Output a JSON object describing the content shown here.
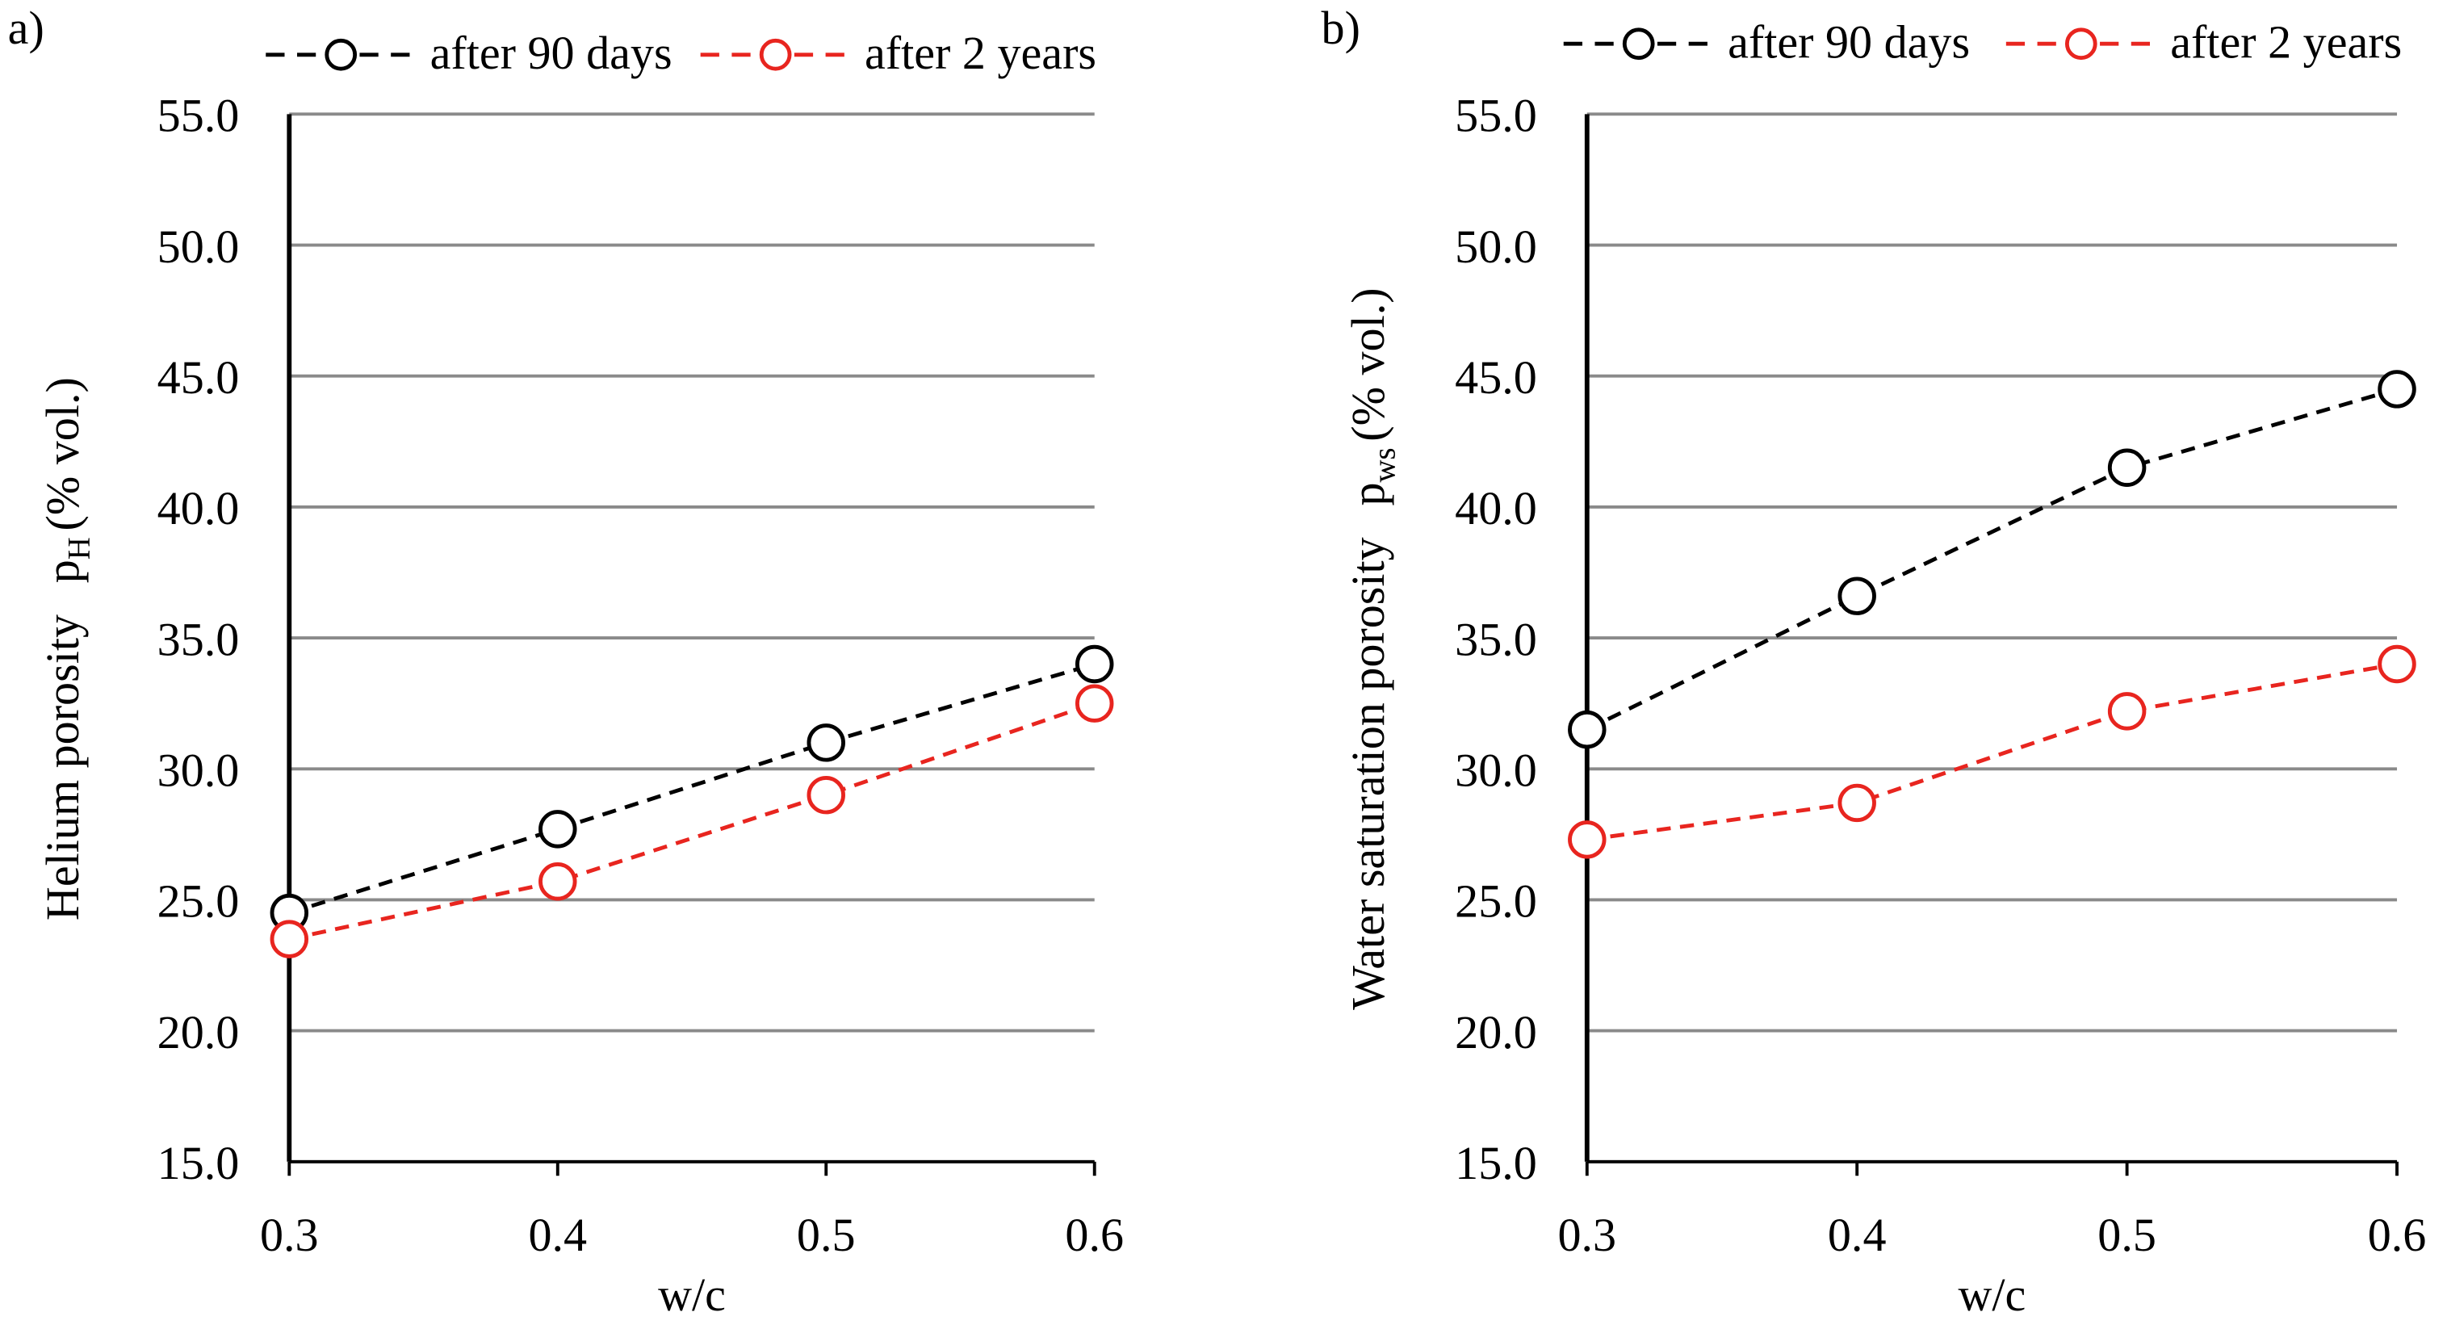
{
  "chart_data": [
    {
      "type": "line",
      "panel": "a)",
      "ylabel": {
        "text": "Helium porosity",
        "symbol": "p",
        "subscript": "H",
        "unit": "(% vol.)"
      },
      "xlabel": "w/c",
      "x": [
        0.3,
        0.4,
        0.5,
        0.6
      ],
      "xlim": [
        0.3,
        0.6
      ],
      "xticks": [
        0.3,
        0.4,
        0.5,
        0.6
      ],
      "ylim": [
        15,
        55
      ],
      "yticks": [
        {
          "value": 15,
          "label": "15.0"
        },
        {
          "value": 20,
          "label": "20.0"
        },
        {
          "value": 25,
          "label": "25.0"
        },
        {
          "value": 30,
          "label": "30.0"
        },
        {
          "value": 35,
          "label": "35.0"
        },
        {
          "value": 40,
          "label": "40.0"
        },
        {
          "value": 45,
          "label": "45.0"
        },
        {
          "value": 50,
          "label": "50.0"
        },
        {
          "value": 55,
          "label": "55.0"
        }
      ],
      "grid": true,
      "legend": "top",
      "series": [
        {
          "name": "after 90 days",
          "color": "#000000",
          "values": [
            24.5,
            27.7,
            31.0,
            34.0
          ]
        },
        {
          "name": "after 2 years",
          "color": "#e8251f",
          "values": [
            23.5,
            25.7,
            29.0,
            32.5
          ]
        }
      ]
    },
    {
      "type": "line",
      "panel": "b)",
      "ylabel": {
        "text": "Water saturation porosity",
        "symbol": "p",
        "subscript": "ws",
        "unit": "(% vol.)"
      },
      "xlabel": "w/c",
      "x": [
        0.3,
        0.4,
        0.5,
        0.6
      ],
      "xlim": [
        0.3,
        0.6
      ],
      "xticks": [
        0.3,
        0.4,
        0.5,
        0.6
      ],
      "ylim": [
        15,
        55
      ],
      "yticks": [
        {
          "value": 15,
          "label": "15.0"
        },
        {
          "value": 20,
          "label": "20.0"
        },
        {
          "value": 25,
          "label": "25.0"
        },
        {
          "value": 30,
          "label": "30.0"
        },
        {
          "value": 35,
          "label": "35.0"
        },
        {
          "value": 40,
          "label": "40.0"
        },
        {
          "value": 45,
          "label": "45.0"
        },
        {
          "value": 50,
          "label": "50.0"
        },
        {
          "value": 55,
          "label": "55.0"
        }
      ],
      "grid": true,
      "legend": "top",
      "series": [
        {
          "name": "after 90 days",
          "color": "#000000",
          "values": [
            31.5,
            36.6,
            41.5,
            44.5
          ]
        },
        {
          "name": "after 2 years",
          "color": "#e8251f",
          "values": [
            27.3,
            28.7,
            32.2,
            34.0
          ]
        }
      ]
    }
  ]
}
